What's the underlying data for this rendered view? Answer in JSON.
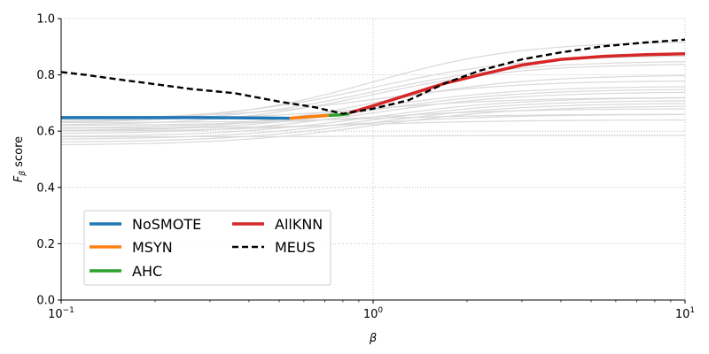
{
  "chart_data": {
    "type": "line",
    "xscale": "log",
    "xlim": [
      0.1,
      10
    ],
    "ylim": [
      0.0,
      1.0
    ],
    "xlabel": "β",
    "ylabel": "F_β score",
    "ylabel_parts": {
      "base": "F",
      "sub": "β",
      "rest": " score"
    },
    "xticks": [
      {
        "value": 0.1,
        "base": "10",
        "exp": "−1"
      },
      {
        "value": 1,
        "base": "10",
        "exp": "0"
      },
      {
        "value": 10,
        "base": "10",
        "exp": "1"
      }
    ],
    "yticks": [
      0.0,
      0.2,
      0.4,
      0.6,
      0.8,
      1.0
    ],
    "ytick_labels": [
      "0.0",
      "0.2",
      "0.4",
      "0.6",
      "0.8",
      "1.0"
    ],
    "grid": "dotted",
    "legend_position": "lower-left",
    "background_series": [
      {
        "low": 0.63,
        "high": 0.92
      },
      {
        "low": 0.64,
        "high": 0.87
      },
      {
        "low": 0.63,
        "high": 0.85
      },
      {
        "low": 0.62,
        "high": 0.84
      },
      {
        "low": 0.6,
        "high": 0.8
      },
      {
        "low": 0.61,
        "high": 0.76
      },
      {
        "low": 0.6,
        "high": 0.75
      },
      {
        "low": 0.59,
        "high": 0.74
      },
      {
        "low": 0.58,
        "high": 0.72
      },
      {
        "low": 0.57,
        "high": 0.71
      },
      {
        "low": 0.56,
        "high": 0.7
      },
      {
        "low": 0.55,
        "high": 0.69
      },
      {
        "low": 0.62,
        "high": 0.68
      },
      {
        "low": 0.6,
        "high": 0.66
      },
      {
        "low": 0.61,
        "high": 0.64
      },
      {
        "low": 0.63,
        "high": 0.66
      },
      {
        "low": 0.64,
        "high": 0.72
      },
      {
        "low": 0.645,
        "high": 0.78
      },
      {
        "low": 0.58,
        "high": 0.585
      }
    ],
    "series": [
      {
        "name": "NoSMOTE",
        "color": "#1f77b4",
        "style": "solid",
        "x": [
          0.1,
          0.2,
          0.3,
          0.4,
          0.54
        ],
        "y": [
          0.648,
          0.648,
          0.648,
          0.647,
          0.646
        ]
      },
      {
        "name": "MSYN",
        "color": "#ff7f0e",
        "style": "solid",
        "x": [
          0.54,
          0.62,
          0.72
        ],
        "y": [
          0.646,
          0.651,
          0.656
        ]
      },
      {
        "name": "AHC",
        "color": "#2ca02c",
        "style": "solid",
        "x": [
          0.72,
          0.78,
          0.84
        ],
        "y": [
          0.656,
          0.658,
          0.662
        ]
      },
      {
        "name": "AllKNN",
        "color": "#d62728",
        "style": "solid",
        "x": [
          0.84,
          1.0,
          1.3,
          1.7,
          2.2,
          3.0,
          4.0,
          5.5,
          7.5,
          10
        ],
        "y": [
          0.665,
          0.69,
          0.73,
          0.77,
          0.8,
          0.835,
          0.855,
          0.866,
          0.872,
          0.875
        ]
      },
      {
        "name": "MEUS",
        "color": "#000000",
        "style": "dashed",
        "x": [
          0.1,
          0.12,
          0.15,
          0.19,
          0.26,
          0.36,
          0.5,
          0.65,
          0.8,
          1.0,
          1.3,
          1.7,
          2.2,
          3.0,
          4.0,
          5.5,
          7.5,
          10
        ],
        "y": [
          0.81,
          0.8,
          0.785,
          0.77,
          0.75,
          0.735,
          0.705,
          0.685,
          0.662,
          0.68,
          0.71,
          0.77,
          0.815,
          0.855,
          0.88,
          0.902,
          0.915,
          0.925
        ]
      }
    ],
    "legend": [
      [
        "NoSMOTE",
        "AllKNN"
      ],
      [
        "MSYN",
        "MEUS"
      ],
      [
        "AHC"
      ]
    ]
  }
}
